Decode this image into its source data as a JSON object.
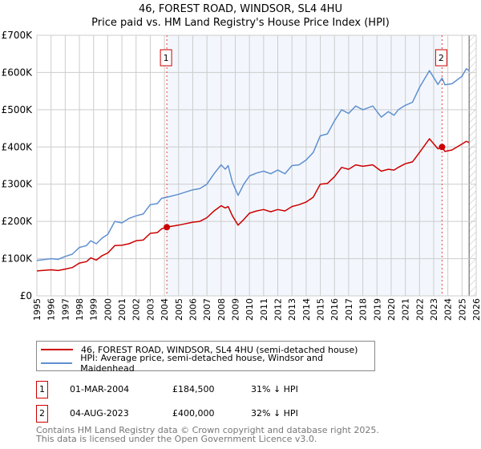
{
  "chart_data": {
    "type": "line",
    "title": "46, FOREST ROAD, WINDSOR, SL4 4HU",
    "subtitle": "Price paid vs. HM Land Registry's House Price Index (HPI)",
    "xlim": [
      1995,
      2026
    ],
    "ylim": [
      0,
      700000
    ],
    "x_ticks": [
      "1995",
      "1996",
      "1997",
      "1998",
      "1999",
      "2000",
      "2001",
      "2002",
      "2003",
      "2004",
      "2005",
      "2006",
      "2007",
      "2008",
      "2009",
      "2010",
      "2011",
      "2012",
      "2013",
      "2014",
      "2015",
      "2016",
      "2017",
      "2018",
      "2019",
      "2020",
      "2021",
      "2022",
      "2023",
      "2024",
      "2025",
      "2026"
    ],
    "y_ticks": [
      {
        "v": 0,
        "label": "£0"
      },
      {
        "v": 100000,
        "label": "£100K"
      },
      {
        "v": 200000,
        "label": "£200K"
      },
      {
        "v": 300000,
        "label": "£300K"
      },
      {
        "v": 400000,
        "label": "£400K"
      },
      {
        "v": 500000,
        "label": "£500K"
      },
      {
        "v": 600000,
        "label": "£600K"
      },
      {
        "v": 700000,
        "label": "£700K"
      }
    ],
    "grid": true,
    "series": [
      {
        "name": "46, FOREST ROAD, WINDSOR, SL4 4HU (semi-detached house)",
        "color": "#cc0000",
        "x": [
          1995,
          1996,
          1996.5,
          1997,
          1997.5,
          1998,
          1998.5,
          1998.8,
          1999.2,
          1999.6,
          2000,
          2000.5,
          2001,
          2001.5,
          2002,
          2002.5,
          2003,
          2003.5,
          2003.8,
          2004.17,
          2005,
          2006,
          2006.5,
          2007,
          2007.5,
          2008,
          2008.3,
          2008.5,
          2008.8,
          2009.2,
          2009.6,
          2010,
          2010.5,
          2011,
          2011.5,
          2012,
          2012.5,
          2013,
          2013.5,
          2014,
          2014.5,
          2015,
          2015.5,
          2016,
          2016.5,
          2017,
          2017.5,
          2018,
          2018.7,
          2019.3,
          2019.8,
          2020.2,
          2020.5,
          2021,
          2021.5,
          2022,
          2022.7,
          2023.3,
          2023.59,
          2023.8,
          2024.3,
          2025,
          2025.3,
          2025.5
        ],
        "y": [
          67000,
          70000,
          68000,
          72000,
          76000,
          88000,
          92000,
          102000,
          96000,
          108000,
          115000,
          135000,
          136000,
          140000,
          148000,
          150000,
          168000,
          170000,
          180000,
          184500,
          190000,
          198000,
          200000,
          210000,
          228000,
          242000,
          236000,
          240000,
          215000,
          190000,
          205000,
          222000,
          228000,
          232000,
          226000,
          232000,
          228000,
          240000,
          245000,
          252000,
          265000,
          300000,
          302000,
          320000,
          345000,
          340000,
          352000,
          348000,
          352000,
          335000,
          340000,
          338000,
          345000,
          355000,
          360000,
          385000,
          422000,
          395000,
          400000,
          388000,
          392000,
          408000,
          415000,
          412000
        ]
      },
      {
        "name": "HPI: Average price, semi-detached house, Windsor and Maidenhead",
        "color": "#6090d0",
        "x": [
          1995,
          1996,
          1996.5,
          1997,
          1997.5,
          1998,
          1998.5,
          1998.8,
          1999.2,
          1999.6,
          2000,
          2000.5,
          2001,
          2001.5,
          2002,
          2002.5,
          2003,
          2003.5,
          2003.8,
          2004.17,
          2005,
          2006,
          2006.5,
          2007,
          2007.5,
          2008,
          2008.3,
          2008.5,
          2008.8,
          2009.2,
          2009.6,
          2010,
          2010.5,
          2011,
          2011.5,
          2012,
          2012.5,
          2013,
          2013.5,
          2014,
          2014.5,
          2015,
          2015.5,
          2016,
          2016.5,
          2017,
          2017.5,
          2018,
          2018.7,
          2019.3,
          2019.8,
          2020.2,
          2020.5,
          2021,
          2021.5,
          2022,
          2022.7,
          2023.3,
          2023.59,
          2023.8,
          2024.3,
          2025,
          2025.3,
          2025.5
        ],
        "y": [
          95000,
          100000,
          98000,
          106000,
          112000,
          130000,
          135000,
          148000,
          140000,
          155000,
          165000,
          200000,
          196000,
          208000,
          215000,
          220000,
          245000,
          248000,
          262000,
          265000,
          273000,
          285000,
          288000,
          300000,
          328000,
          352000,
          340000,
          350000,
          305000,
          270000,
          300000,
          322000,
          330000,
          335000,
          328000,
          338000,
          328000,
          350000,
          352000,
          365000,
          385000,
          430000,
          435000,
          470000,
          500000,
          490000,
          510000,
          500000,
          510000,
          480000,
          495000,
          485000,
          500000,
          512000,
          520000,
          560000,
          605000,
          568000,
          585000,
          567000,
          570000,
          590000,
          610000,
          605000
        ]
      }
    ],
    "sales": [
      {
        "label": "1",
        "x": 2004.17,
        "y": 184500
      },
      {
        "label": "2",
        "x": 2023.59,
        "y": 400000
      }
    ],
    "shaded_range": [
      2004.17,
      2023.59
    ],
    "forecast_start": 2025.5
  },
  "header": {
    "title": "46, FOREST ROAD, WINDSOR, SL4 4HU",
    "subtitle": "Price paid vs. HM Land Registry's House Price Index (HPI)"
  },
  "legend": [
    "46, FOREST ROAD, WINDSOR, SL4 4HU (semi-detached house)",
    "HPI: Average price, semi-detached house, Windsor and Maidenhead"
  ],
  "sales_table": [
    {
      "num": "1",
      "date": "01-MAR-2004",
      "price": "£184,500",
      "diff": "31% ↓ HPI"
    },
    {
      "num": "2",
      "date": "04-AUG-2023",
      "price": "£400,000",
      "diff": "32% ↓ HPI"
    }
  ],
  "footer": [
    "Contains HM Land Registry data © Crown copyright and database right 2025.",
    "This data is licensed under the Open Government Licence v3.0."
  ]
}
